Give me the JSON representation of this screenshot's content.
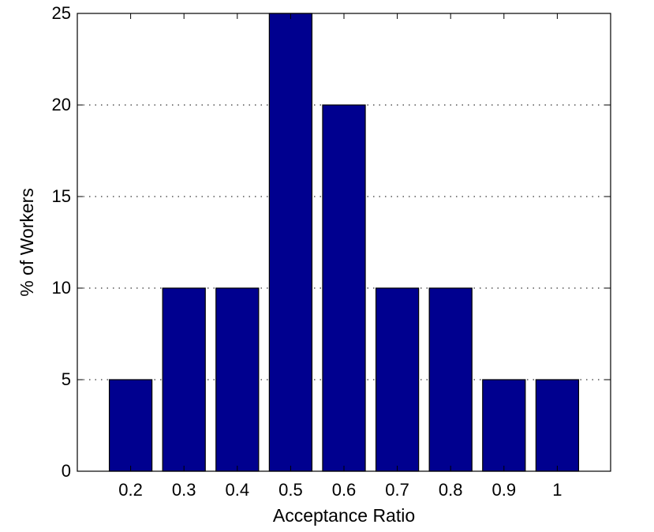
{
  "chart_data": {
    "type": "bar",
    "categories": [
      "0.2",
      "0.3",
      "0.4",
      "0.5",
      "0.6",
      "0.7",
      "0.8",
      "0.9",
      "1"
    ],
    "values": [
      5,
      10,
      10,
      25,
      20,
      10,
      10,
      5,
      5
    ],
    "xlabel": "Acceptance Ratio",
    "ylabel": "% of Workers",
    "ylim": [
      0,
      25
    ],
    "yticks": [
      "0",
      "5",
      "10",
      "15",
      "20",
      "25"
    ],
    "grid": "y-dotted",
    "bar_color": "#00008f",
    "bar_edge_color": "#000000"
  }
}
